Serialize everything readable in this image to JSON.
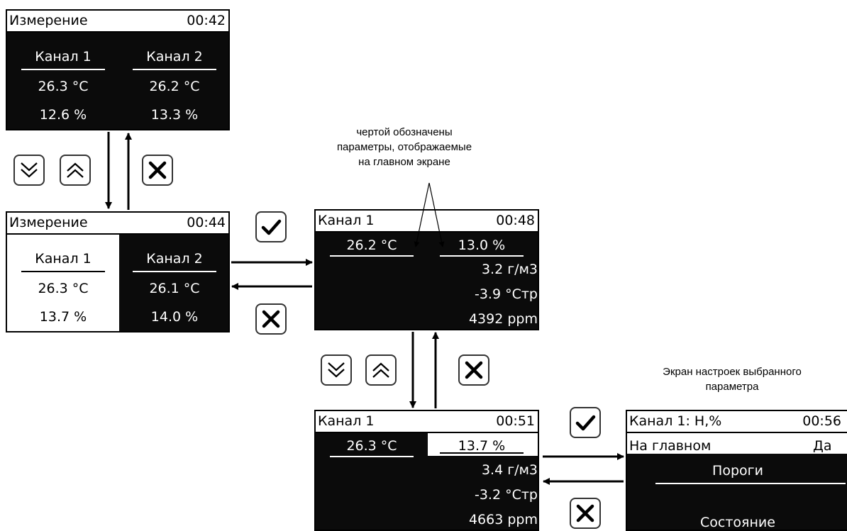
{
  "screen1": {
    "title": "Измерение",
    "time": "00:42",
    "ch1": "Канал 1",
    "ch2": "Канал 2",
    "t1": "26.3 °C",
    "t2": "26.2 °C",
    "h1": "12.6 %",
    "h2": "13.3 %"
  },
  "screen2": {
    "title": "Измерение",
    "time": "00:44",
    "ch1": "Канал 1",
    "ch2": "Канал 2",
    "t1": "26.3 °C",
    "t2": "26.1 °C",
    "h1": "13.7 %",
    "h2": "14.0 %"
  },
  "screen3": {
    "title": "Канал 1",
    "time": "00:48",
    "temp": "26.2 °C",
    "hum": "13.0 %",
    "abs": "3.2 г/м3",
    "dew": "-3.9 °Стр",
    "ppm": "4392 ppm"
  },
  "screen4": {
    "title": "Канал 1",
    "time": "00:51",
    "temp": "26.3 °C",
    "hum": "13.7 %",
    "abs": "3.4 г/м3",
    "dew": "-3.2 °Стр",
    "ppm": "4663 ppm"
  },
  "screen5": {
    "title": "Канал 1: Н,%",
    "time": "00:56",
    "main_label": "На главном",
    "main_value": "Да",
    "thresholds": "Пороги",
    "state": "Состояние"
  },
  "note_main": "чертой обозначены параметры, отображаемые на главном экране",
  "note_settings": "Экран настроек выбранного параметра",
  "icons": {
    "down": "double-chevron-down-icon",
    "up": "double-chevron-up-icon",
    "ok": "checkmark-icon",
    "cancel": "cross-icon"
  }
}
